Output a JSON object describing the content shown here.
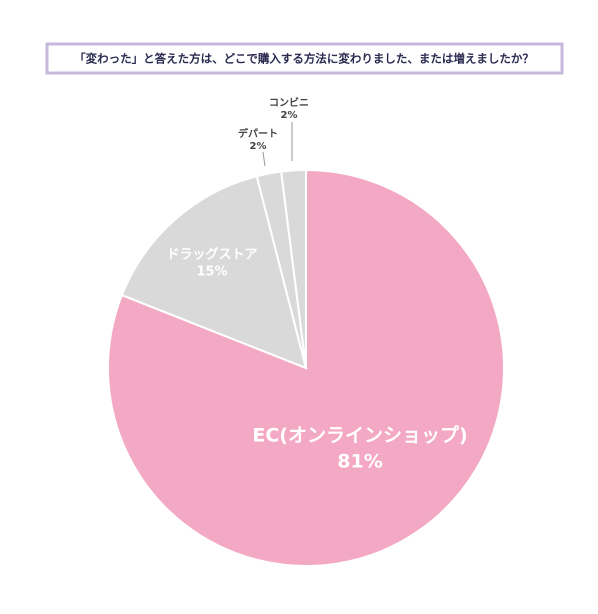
{
  "chart_data": {
    "type": "pie",
    "title": "「変わった」と答えた方は、どこで購入する方法に変わりました、または増えましたか？",
    "categories": [
      "EC(オンラインショップ)",
      "ドラッグストア",
      "デパート",
      "コンビニ"
    ],
    "values": [
      81,
      15,
      2,
      2
    ],
    "value_labels": [
      "81%",
      "15%",
      "2%",
      "2%"
    ],
    "colors": [
      "#f3a8c3",
      "#d9d9d9",
      "#d9d9d9",
      "#d9d9d9"
    ]
  }
}
